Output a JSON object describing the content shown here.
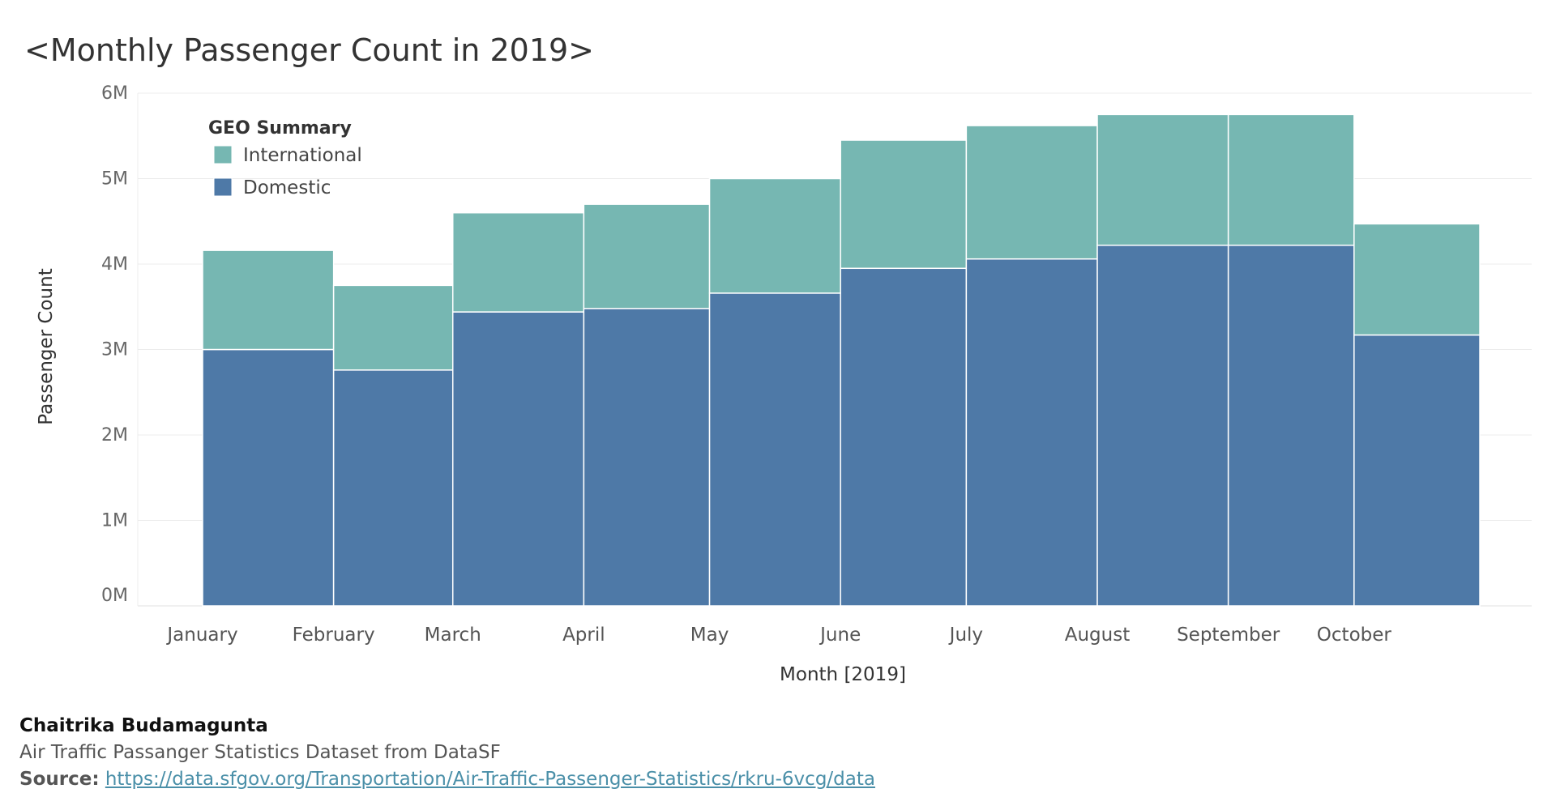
{
  "title": "<Monthly Passenger Count in 2019>",
  "chart_data": {
    "type": "bar",
    "stacked": true,
    "variable_width": true,
    "categories": [
      "January",
      "February",
      "March",
      "April",
      "May",
      "June",
      "July",
      "August",
      "September",
      "October"
    ],
    "widths": [
      1,
      0.91,
      1,
      0.96,
      1,
      0.96,
      1,
      1,
      0.96,
      0.96
    ],
    "series": [
      {
        "name": "Domestic",
        "color": "#4e79a7",
        "values": [
          3000000,
          2760000,
          3440000,
          3480000,
          3660000,
          3950000,
          4060000,
          4220000,
          4220000,
          3170000
        ]
      },
      {
        "name": "International",
        "color": "#76b7b2",
        "values": [
          1160000,
          990000,
          1160000,
          1220000,
          1340000,
          1500000,
          1560000,
          1530000,
          1530000,
          1300000
        ]
      }
    ],
    "yticks": [
      "0M",
      "1M",
      "2M",
      "3M",
      "4M",
      "5M",
      "6M"
    ],
    "ylim": [
      0,
      6000000
    ],
    "xlabel": "Month [2019]",
    "ylabel": "Passenger Count",
    "legend": {
      "title": "GEO Summary",
      "position": "top-left",
      "entries": [
        "International",
        "Domestic"
      ]
    },
    "grid": true
  },
  "footer": {
    "author": "Chaitrika Budamagunta",
    "dataset": "Air Traffic Passanger Statistics Dataset from DataSF",
    "source_label": "Source:",
    "source_url": "https://data.sfgov.org/Transportation/Air-Traffic-Passenger-Statistics/rkru-6vcg/data"
  }
}
